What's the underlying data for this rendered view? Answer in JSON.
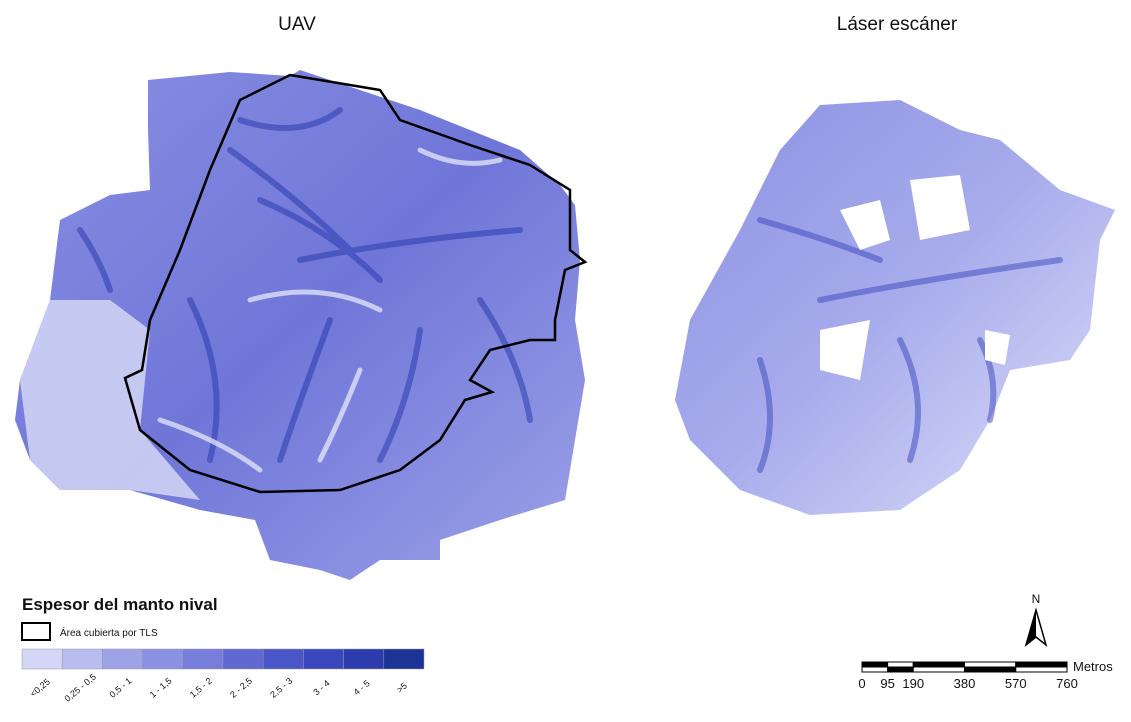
{
  "maps": [
    {
      "title": "UAV"
    },
    {
      "title": "Láser escáner"
    }
  ],
  "legend": {
    "title": "Espesor del manto nival",
    "outline_label": "Área cubierta por TLS",
    "classes": [
      {
        "label": "<0,25",
        "color": "#d4d6f5"
      },
      {
        "label": "0,25 - 0,5",
        "color": "#b8bcef"
      },
      {
        "label": "0,5 - 1",
        "color": "#9ea3e8"
      },
      {
        "label": "1 - 1,5",
        "color": "#8a90e2"
      },
      {
        "label": "1,5 - 2",
        "color": "#777ddb"
      },
      {
        "label": "2 - 2,5",
        "color": "#6068d2"
      },
      {
        "label": "2,5 - 3",
        "color": "#4a55c8"
      },
      {
        "label": "3 - 4",
        "color": "#3a47bd"
      },
      {
        "label": "4 - 5",
        "color": "#2c3caf"
      },
      {
        "label": ">5",
        "color": "#1c3496"
      }
    ]
  },
  "north_label": "N",
  "scale_bar": {
    "ticks": [
      0,
      95,
      190,
      380,
      570,
      760
    ],
    "unit": "Metros"
  }
}
